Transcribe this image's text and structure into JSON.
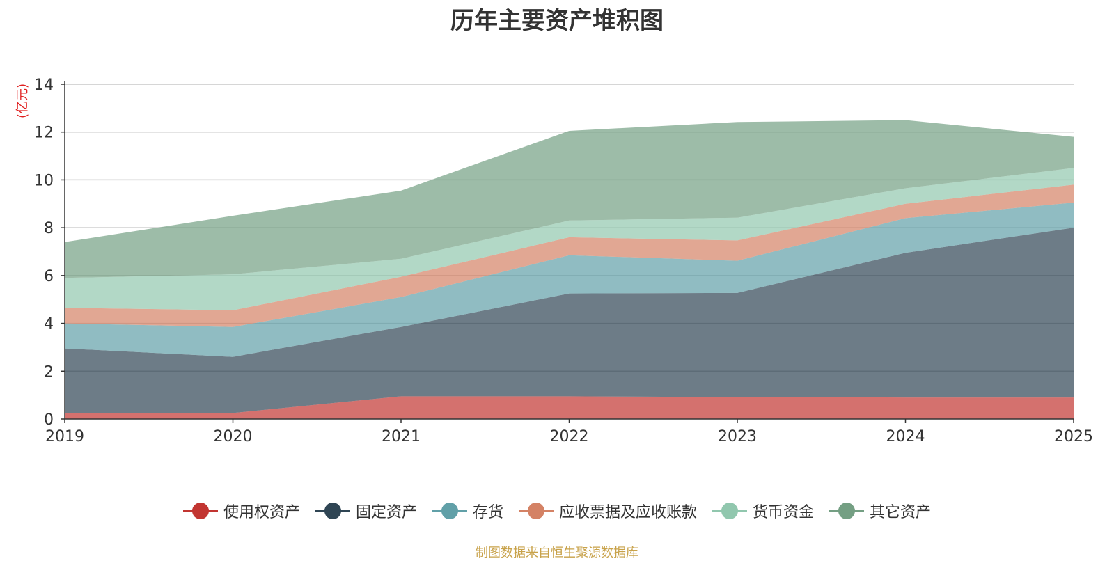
{
  "chart_data": {
    "type": "area",
    "stacked": true,
    "title": "历年主要资产堆积图",
    "ylabel": "(亿元)",
    "xlabel": "",
    "categories": [
      "2019",
      "2020",
      "2021",
      "2022",
      "2023",
      "2024",
      "2025"
    ],
    "ylim": [
      0,
      14
    ],
    "yticks": [
      "0",
      "2",
      "4",
      "6",
      "8",
      "10",
      "12",
      "14"
    ],
    "grid": true,
    "legend_position": "bottom",
    "series": [
      {
        "name": "使用权资产",
        "color": "#c23531",
        "values": [
          0.25,
          0.25,
          0.95,
          0.95,
          0.92,
          0.9,
          0.9
        ]
      },
      {
        "name": "固定资产",
        "color": "#2f4554",
        "values": [
          2.7,
          2.35,
          2.9,
          4.3,
          4.35,
          6.05,
          7.1
        ]
      },
      {
        "name": "存货",
        "color": "#61a0a8",
        "values": [
          1.05,
          1.25,
          1.25,
          1.6,
          1.35,
          1.45,
          1.05
        ]
      },
      {
        "name": "应收票据及应收账款",
        "color": "#d48265",
        "values": [
          0.65,
          0.7,
          0.85,
          0.75,
          0.85,
          0.6,
          0.75
        ]
      },
      {
        "name": "货币资金",
        "color": "#91c7ae",
        "values": [
          1.25,
          1.5,
          0.75,
          0.7,
          0.95,
          0.65,
          0.7
        ]
      },
      {
        "name": "其它资产",
        "color": "#749f83",
        "values": [
          1.5,
          2.45,
          2.85,
          3.75,
          4.0,
          2.85,
          1.3
        ]
      }
    ]
  },
  "source_note": "制图数据来自恒生聚源数据库"
}
